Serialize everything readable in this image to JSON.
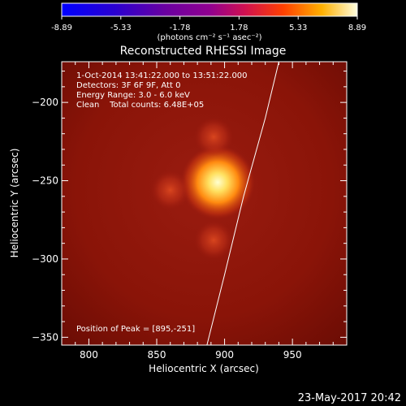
{
  "colorbar": {
    "ticks": [
      "-8.89",
      "-5.33",
      "-1.78",
      "1.78",
      "5.33",
      "8.89"
    ],
    "unit_label": "(photons cm⁻² s⁻¹ asec⁻²)"
  },
  "chart_data": {
    "type": "heatmap",
    "title": "Reconstructed RHESSI Image",
    "xlabel": "Heliocentric X (arcsec)",
    "ylabel": "Heliocentric Y (arcsec)",
    "xlim": [
      780,
      990
    ],
    "ylim": [
      -355,
      -174
    ],
    "xticks": [
      800,
      850,
      900,
      950
    ],
    "yticks": [
      -200,
      -250,
      -300,
      -350
    ],
    "value_range": [
      -8.89,
      8.89
    ],
    "peak": {
      "x": 895,
      "y": -251
    },
    "sources": [
      {
        "x": 895,
        "y": -251,
        "relative_intensity": 1.0
      },
      {
        "x": 860,
        "y": -256,
        "relative_intensity": 0.35
      },
      {
        "x": 892,
        "y": -222,
        "relative_intensity": 0.3
      },
      {
        "x": 892,
        "y": -288,
        "relative_intensity": 0.35
      }
    ],
    "limb_curve": [
      {
        "x": 940,
        "y": -174
      },
      {
        "x": 930,
        "y": -210
      },
      {
        "x": 914,
        "y": -260
      },
      {
        "x": 900,
        "y": -310
      },
      {
        "x": 887,
        "y": -355
      }
    ],
    "annotations": [
      "1-Oct-2014 13:41:22.000 to 13:51:22.000",
      "Detectors: 3F 6F 9F, Att 0",
      "Energy Range: 3.0 - 6.0 keV",
      "Clean    Total counts: 6.48E+05",
      "Position of Peak = [895,-251]"
    ]
  },
  "footer": {
    "timestamp": "23-May-2017 20:42"
  }
}
